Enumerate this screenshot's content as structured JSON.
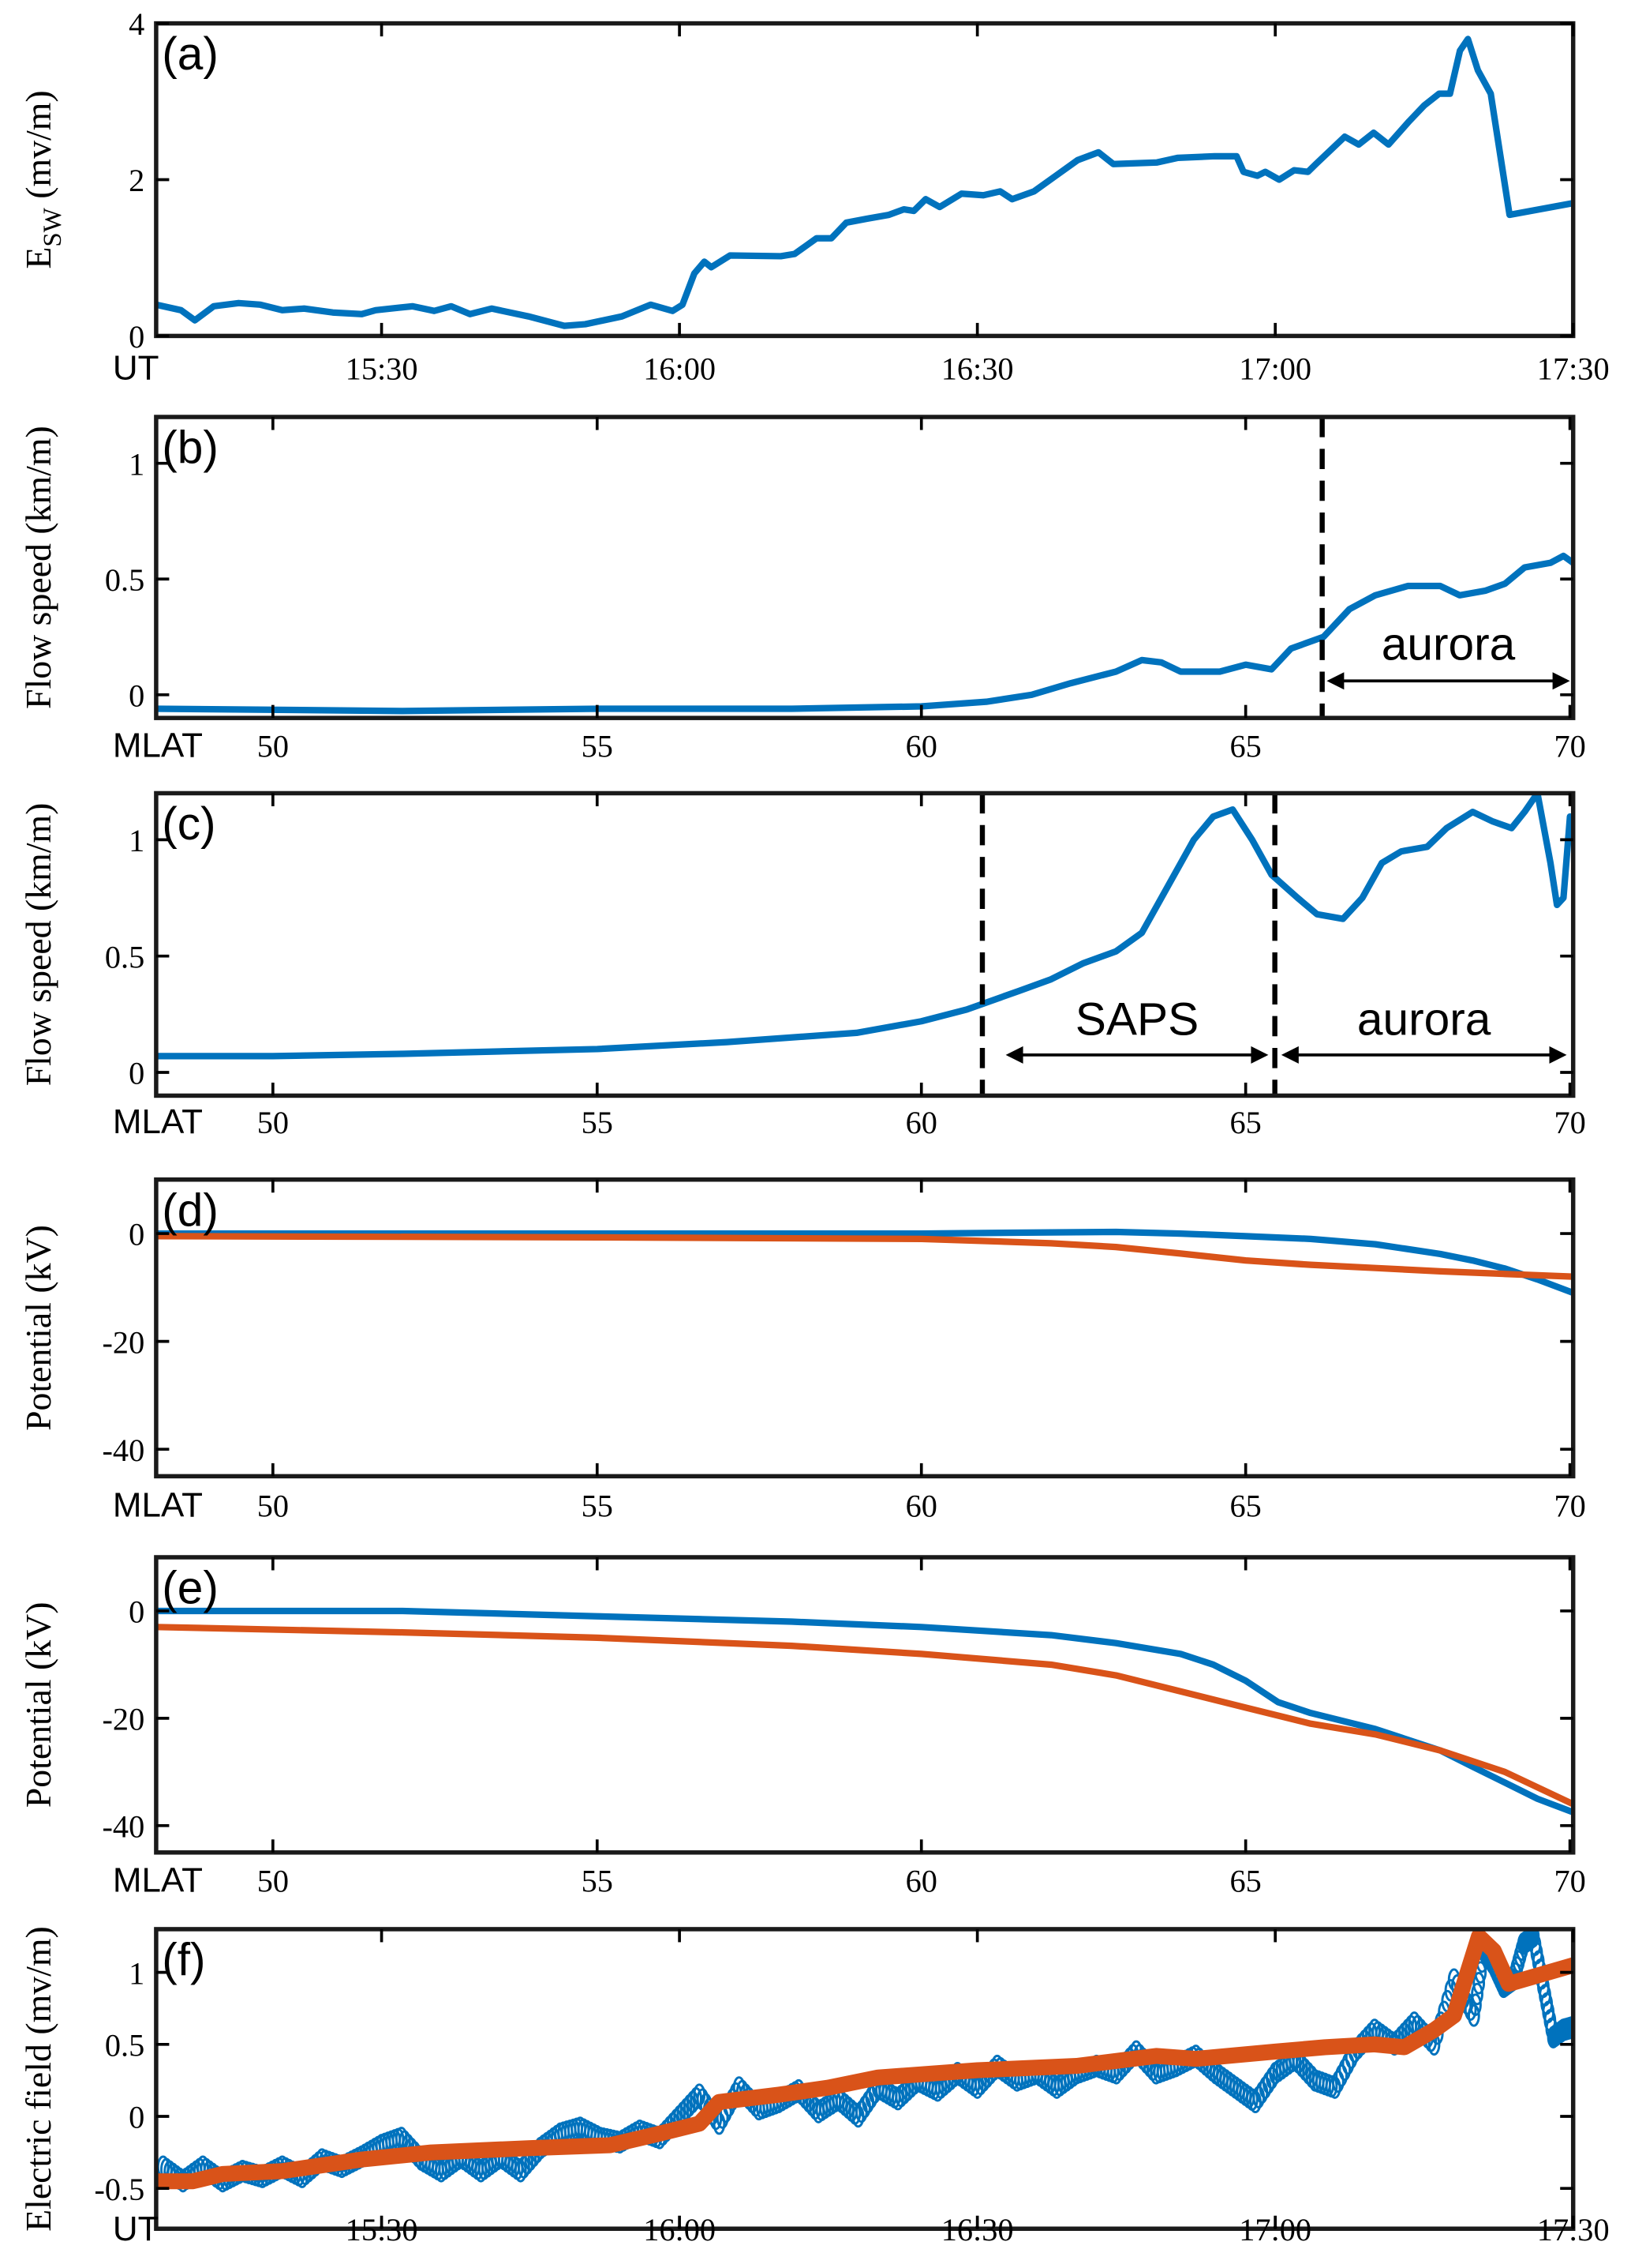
{
  "colors": {
    "blue": "#0072BD",
    "orange": "#D95319",
    "axis": "#000000"
  },
  "chart_data": [
    {
      "type": "line",
      "panel_label": "(a)",
      "ylabel": {
        "main": "E",
        "sub": "SW",
        "unit": " (mv/m)"
      },
      "xaxis_name": "UT",
      "xlim": [
        7.3,
        150
      ],
      "ylim": [
        0,
        4
      ],
      "x_unit": "minutes after 15:00 UT",
      "xticks": [
        {
          "value": 30,
          "label": "15:30"
        },
        {
          "value": 60,
          "label": "16:00"
        },
        {
          "value": 90,
          "label": "16:30"
        },
        {
          "value": 120,
          "label": "17:00"
        },
        {
          "value": 150,
          "label": "17:30"
        }
      ],
      "yticks": [
        {
          "value": 0,
          "label": "0"
        },
        {
          "value": 2,
          "label": "2"
        },
        {
          "value": 4,
          "label": "4"
        }
      ],
      "series": [
        {
          "name": "E_SW",
          "color": "blue",
          "style": "line",
          "x": [
            7.3,
            9.8,
            11.2,
            13.1,
            15.6,
            17.8,
            20.0,
            22.2,
            25.1,
            28.0,
            29.4,
            33.1,
            35.3,
            37.0,
            38.9,
            41.1,
            44.8,
            48.4,
            50.5,
            54.2,
            57.1,
            59.3,
            60.3,
            61.5,
            62.5,
            63.2,
            65.1,
            70.2,
            71.6,
            73.8,
            75.3,
            76.8,
            78.9,
            81.1,
            82.6,
            83.6,
            84.8,
            86.2,
            88.4,
            90.6,
            92.3,
            93.5,
            95.7,
            97.9,
            100.1,
            102.2,
            103.7,
            108.1,
            110.2,
            113.9,
            116.1,
            116.8,
            118.2,
            119.0,
            120.4,
            121.9,
            123.3,
            124.1,
            127.0,
            128.4,
            129.9,
            131.4,
            133.5,
            135.0,
            136.5,
            137.6,
            138.6,
            139.4,
            140.4,
            141.7,
            143.6,
            150.0
          ],
          "y": [
            0.4,
            0.33,
            0.2,
            0.38,
            0.42,
            0.4,
            0.33,
            0.35,
            0.3,
            0.28,
            0.33,
            0.38,
            0.32,
            0.38,
            0.28,
            0.35,
            0.25,
            0.13,
            0.15,
            0.25,
            0.4,
            0.32,
            0.4,
            0.8,
            0.95,
            0.88,
            1.03,
            1.02,
            1.05,
            1.25,
            1.25,
            1.45,
            1.5,
            1.55,
            1.62,
            1.6,
            1.75,
            1.65,
            1.82,
            1.8,
            1.85,
            1.75,
            1.85,
            2.05,
            2.25,
            2.35,
            2.2,
            2.22,
            2.28,
            2.3,
            2.3,
            2.1,
            2.05,
            2.1,
            2.0,
            2.12,
            2.1,
            2.2,
            2.55,
            2.45,
            2.6,
            2.45,
            2.75,
            2.95,
            3.1,
            3.1,
            3.65,
            3.8,
            3.4,
            3.1,
            1.55,
            1.7
          ]
        }
      ]
    },
    {
      "type": "line",
      "panel_label": "(b)",
      "ylabel": {
        "main": "Flow speed (km/m)"
      },
      "xaxis_name": "MLAT",
      "xlim": [
        48.2,
        70.05
      ],
      "ylim": [
        -0.1,
        1.2
      ],
      "xticks": [
        {
          "value": 50,
          "label": "50"
        },
        {
          "value": 55,
          "label": "55"
        },
        {
          "value": 60,
          "label": "60"
        },
        {
          "value": 65,
          "label": "65"
        },
        {
          "value": 70,
          "label": "70"
        }
      ],
      "yticks": [
        {
          "value": 0,
          "label": "0"
        },
        {
          "value": 0.5,
          "label": "0.5"
        },
        {
          "value": 1,
          "label": "1"
        }
      ],
      "series": [
        {
          "name": "Flow speed",
          "color": "blue",
          "style": "line",
          "x": [
            48.2,
            52,
            55,
            58,
            60,
            61,
            61.7,
            62.3,
            63,
            63.4,
            63.7,
            64,
            64.6,
            65,
            65.4,
            65.7,
            66.2,
            66.6,
            67,
            67.5,
            68,
            68.3,
            68.7,
            69,
            69.3,
            69.7,
            69.9,
            70.05
          ],
          "y": [
            -0.06,
            -0.07,
            -0.06,
            -0.06,
            -0.05,
            -0.03,
            0.0,
            0.05,
            0.1,
            0.15,
            0.14,
            0.1,
            0.1,
            0.13,
            0.11,
            0.2,
            0.25,
            0.37,
            0.43,
            0.47,
            0.47,
            0.43,
            0.45,
            0.48,
            0.55,
            0.57,
            0.6,
            0.57
          ]
        }
      ],
      "vlines": [
        66.18
      ],
      "arrows": [
        {
          "from": 66.25,
          "to": 70.0,
          "y": 0.06,
          "label": "aurora",
          "label_y": 0.22
        }
      ]
    },
    {
      "type": "line",
      "panel_label": "(c)",
      "ylabel": {
        "main": "Flow speed (km/m)"
      },
      "xaxis_name": "MLAT",
      "xlim": [
        48.2,
        70.05
      ],
      "ylim": [
        -0.1,
        1.2
      ],
      "xticks": [
        {
          "value": 50,
          "label": "50"
        },
        {
          "value": 55,
          "label": "55"
        },
        {
          "value": 60,
          "label": "60"
        },
        {
          "value": 65,
          "label": "65"
        },
        {
          "value": 70,
          "label": "70"
        }
      ],
      "yticks": [
        {
          "value": 0,
          "label": "0"
        },
        {
          "value": 0.5,
          "label": "0.5"
        },
        {
          "value": 1,
          "label": "1"
        }
      ],
      "series": [
        {
          "name": "Flow speed",
          "color": "blue",
          "style": "line",
          "x": [
            48.2,
            50,
            52,
            55,
            57,
            59,
            60,
            60.7,
            61.5,
            62,
            62.5,
            63,
            63.4,
            63.8,
            64.2,
            64.5,
            64.8,
            65.1,
            65.4,
            65.8,
            66.1,
            66.5,
            66.8,
            67.1,
            67.4,
            67.8,
            68.1,
            68.5,
            68.8,
            69.1,
            69.3,
            69.5,
            69.7,
            69.8,
            69.9,
            70.0,
            70.05
          ],
          "y": [
            0.07,
            0.07,
            0.08,
            0.1,
            0.13,
            0.17,
            0.22,
            0.27,
            0.35,
            0.4,
            0.47,
            0.52,
            0.6,
            0.8,
            1.0,
            1.1,
            1.13,
            1.0,
            0.85,
            0.75,
            0.68,
            0.66,
            0.75,
            0.9,
            0.95,
            0.97,
            1.05,
            1.12,
            1.08,
            1.05,
            1.12,
            1.2,
            0.9,
            0.72,
            0.75,
            1.1,
            1.05
          ]
        }
      ],
      "vlines": [
        60.94,
        65.45
      ],
      "arrows": [
        {
          "from": 61.3,
          "to": 65.35,
          "y": 0.075,
          "label": "SAPS",
          "label_y": 0.23
        },
        {
          "from": 65.55,
          "to": 69.95,
          "y": 0.075,
          "label": "aurora",
          "label_y": 0.23
        }
      ]
    },
    {
      "type": "line",
      "panel_label": "(d)",
      "ylabel": {
        "main": "Potential (kV)"
      },
      "xaxis_name": "MLAT",
      "xlim": [
        48.2,
        70.05
      ],
      "ylim": [
        -45,
        10
      ],
      "xticks": [
        {
          "value": 50,
          "label": "50"
        },
        {
          "value": 55,
          "label": "55"
        },
        {
          "value": 60,
          "label": "60"
        },
        {
          "value": 65,
          "label": "65"
        },
        {
          "value": 70,
          "label": "70"
        }
      ],
      "yticks": [
        {
          "value": -40,
          "label": "-40"
        },
        {
          "value": -20,
          "label": "-20"
        },
        {
          "value": 0,
          "label": "0"
        }
      ],
      "series": [
        {
          "name": "Potential (blue)",
          "color": "blue",
          "style": "line",
          "x": [
            48.2,
            55,
            60,
            62,
            63,
            64,
            65,
            66,
            67,
            68,
            68.5,
            69,
            69.5,
            70.05
          ],
          "y": [
            0,
            0,
            0,
            0.2,
            0.3,
            0,
            -0.5,
            -1,
            -2,
            -3.8,
            -5,
            -6.5,
            -8.5,
            -11
          ]
        },
        {
          "name": "Potential (orange)",
          "color": "orange",
          "style": "line",
          "x": [
            48.2,
            55,
            60,
            62,
            63,
            64,
            65,
            66,
            67,
            68,
            69,
            70.05
          ],
          "y": [
            -0.5,
            -0.7,
            -1,
            -1.8,
            -2.5,
            -3.7,
            -5,
            -5.8,
            -6.4,
            -7,
            -7.5,
            -8
          ]
        }
      ]
    },
    {
      "type": "line",
      "panel_label": "(e)",
      "ylabel": {
        "main": "Potential (kV)"
      },
      "xaxis_name": "MLAT",
      "xlim": [
        48.2,
        70.05
      ],
      "ylim": [
        -45,
        10
      ],
      "xticks": [
        {
          "value": 50,
          "label": "50"
        },
        {
          "value": 55,
          "label": "55"
        },
        {
          "value": 60,
          "label": "60"
        },
        {
          "value": 65,
          "label": "65"
        },
        {
          "value": 70,
          "label": "70"
        }
      ],
      "yticks": [
        {
          "value": -40,
          "label": "-40"
        },
        {
          "value": -20,
          "label": "-20"
        },
        {
          "value": 0,
          "label": "0"
        }
      ],
      "series": [
        {
          "name": "Potential (blue)",
          "color": "blue",
          "style": "line",
          "x": [
            48.2,
            52,
            55,
            58,
            60,
            62,
            63,
            64,
            64.5,
            65,
            65.5,
            66,
            67,
            68,
            68.5,
            69,
            69.5,
            70.05
          ],
          "y": [
            0,
            0,
            -1,
            -2,
            -3,
            -4.5,
            -6,
            -8,
            -10,
            -13,
            -17,
            -19,
            -22,
            -26,
            -29,
            -32,
            -35,
            -37.5
          ]
        },
        {
          "name": "Potential (orange)",
          "color": "orange",
          "style": "line",
          "x": [
            48.2,
            52,
            55,
            58,
            60,
            62,
            63,
            64,
            65,
            65.5,
            66,
            67,
            68,
            69,
            70.05
          ],
          "y": [
            -3,
            -4,
            -5,
            -6.5,
            -8,
            -10,
            -12,
            -15,
            -18,
            -19.5,
            -21,
            -23,
            -26,
            -30,
            -36
          ]
        }
      ]
    },
    {
      "type": "scatter",
      "panel_label": "(f)",
      "ylabel": {
        "main": "Electric field (mv/m)"
      },
      "xaxis_name": "UT",
      "xlim": [
        7.3,
        150
      ],
      "ylim": [
        -0.78,
        1.3
      ],
      "x_unit": "minutes after 15:00 UT",
      "xticks": [
        {
          "value": 30,
          "label": "15:30"
        },
        {
          "value": 60,
          "label": "16:00"
        },
        {
          "value": 90,
          "label": "16:30"
        },
        {
          "value": 120,
          "label": "17:00"
        },
        {
          "value": 150,
          "label": "17:30"
        }
      ],
      "yticks": [
        {
          "value": -0.5,
          "label": "-0.5"
        },
        {
          "value": 0,
          "label": "0"
        },
        {
          "value": 0.5,
          "label": "0.5"
        },
        {
          "value": 1,
          "label": "1"
        }
      ],
      "series": [
        {
          "name": "Electric field (points)",
          "color": "blue",
          "style": "circles",
          "x": [
            8,
            10,
            12,
            14,
            16,
            18,
            20,
            22,
            24,
            26,
            28,
            30,
            32,
            34,
            36,
            38,
            40,
            42,
            44,
            46,
            48,
            50,
            52,
            54,
            56,
            58,
            60,
            62,
            64,
            66,
            68,
            70,
            72,
            74,
            76,
            78,
            80,
            82,
            84,
            86,
            88,
            90,
            92,
            94,
            96,
            98,
            100,
            102,
            104,
            106,
            108,
            110,
            112,
            114,
            116,
            118,
            120,
            122,
            124,
            126,
            128,
            130,
            132,
            134,
            136,
            138,
            140,
            141,
            142,
            143,
            144,
            145,
            146,
            147,
            148,
            149,
            150
          ],
          "y": [
            -0.35,
            -0.45,
            -0.35,
            -0.45,
            -0.38,
            -0.42,
            -0.35,
            -0.42,
            -0.3,
            -0.35,
            -0.28,
            -0.2,
            -0.15,
            -0.3,
            -0.38,
            -0.28,
            -0.38,
            -0.28,
            -0.38,
            -0.22,
            -0.12,
            -0.08,
            -0.15,
            -0.18,
            -0.1,
            -0.15,
            0.0,
            0.15,
            -0.05,
            0.2,
            0.05,
            0.1,
            0.18,
            0.03,
            0.12,
            0.0,
            0.2,
            0.12,
            0.25,
            0.18,
            0.3,
            0.2,
            0.35,
            0.25,
            0.3,
            0.2,
            0.3,
            0.35,
            0.3,
            0.45,
            0.3,
            0.35,
            0.42,
            0.3,
            0.2,
            0.1,
            0.3,
            0.4,
            0.25,
            0.2,
            0.45,
            0.6,
            0.5,
            0.65,
            0.5,
            0.95,
            0.7,
            1.15,
            1.05,
            0.9,
            0.95,
            1.2,
            1.25,
            0.9,
            0.55,
            0.6,
            0.62
          ]
        },
        {
          "name": "Electric field (smoothed)",
          "color": "orange",
          "style": "thick-line",
          "x": [
            7.3,
            11,
            14,
            20,
            28,
            35,
            45,
            53,
            58,
            62,
            64,
            70,
            75,
            80,
            90,
            100,
            108,
            112,
            120,
            125,
            130,
            133,
            136,
            138,
            140.5,
            142,
            143.5,
            150
          ],
          "y": [
            -0.45,
            -0.45,
            -0.4,
            -0.38,
            -0.3,
            -0.25,
            -0.22,
            -0.2,
            -0.12,
            -0.05,
            0.1,
            0.15,
            0.2,
            0.27,
            0.32,
            0.35,
            0.42,
            0.4,
            0.45,
            0.48,
            0.5,
            0.48,
            0.6,
            0.7,
            1.25,
            1.15,
            0.92,
            1.05
          ]
        }
      ]
    }
  ]
}
